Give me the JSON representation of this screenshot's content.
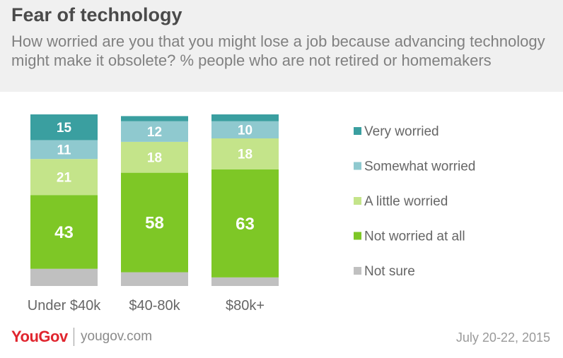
{
  "header": {
    "title": "Fear of technology",
    "subtitle": "How worried are you that you might lose a job because advancing technology might make it obsolete? % people who are not retired or homemakers"
  },
  "footer": {
    "logo": "YouGov",
    "site": "yougov.com",
    "date": "July 20-22, 2015"
  },
  "chart_data": {
    "type": "bar",
    "stacked": true,
    "categories": [
      "Under $40k",
      "$40-80k",
      "$80k+"
    ],
    "series": [
      {
        "name": "Very worried",
        "color": "#3a9fa0",
        "values": [
          15,
          3,
          4
        ]
      },
      {
        "name": "Somewhat worried",
        "color": "#8fc9cf",
        "values": [
          11,
          12,
          10
        ]
      },
      {
        "name": "A little worried",
        "color": "#c4e48a",
        "values": [
          21,
          18,
          18
        ]
      },
      {
        "name": "Not worried at all",
        "color": "#7ec726",
        "values": [
          43,
          58,
          63
        ]
      },
      {
        "name": "Not sure",
        "color": "#c0c0c0",
        "values": [
          10,
          8,
          5
        ]
      }
    ],
    "labels": [
      [
        "15",
        "11",
        "21",
        "43",
        ""
      ],
      [
        "",
        "12",
        "18",
        "58",
        ""
      ],
      [
        "",
        "10",
        "18",
        "63",
        ""
      ]
    ],
    "legend": "right",
    "grid": false
  }
}
